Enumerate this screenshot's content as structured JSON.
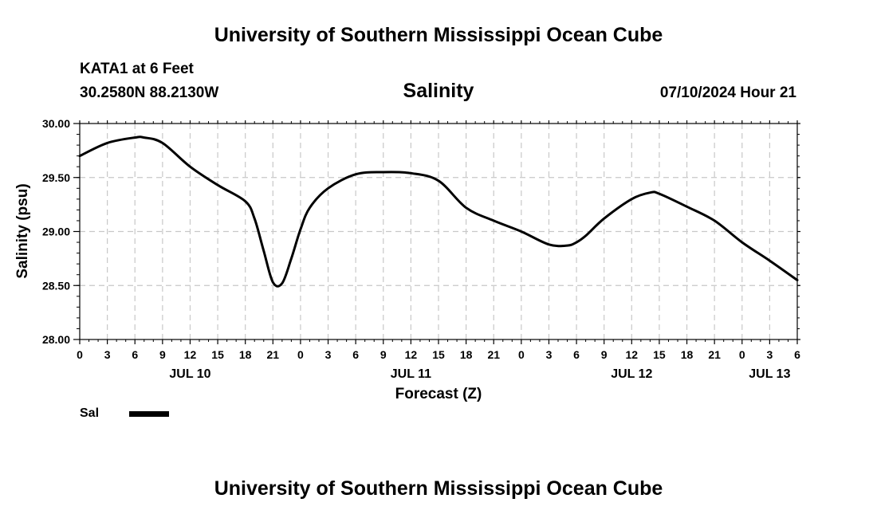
{
  "header": {
    "title": "University of Southern Mississippi Ocean Cube",
    "station": "KATA1 at 6 Feet",
    "coords": "30.2580N  88.2130W",
    "parameter": "Salinity",
    "datetime": "07/10/2024 Hour 21"
  },
  "footer": {
    "title": "University of Southern Mississippi Ocean Cube"
  },
  "legend": {
    "label": "Sal"
  },
  "colors": {
    "line": "#000000",
    "grid": "#c8c8c8"
  },
  "chart_data": {
    "type": "line",
    "title": "Salinity",
    "xlabel": "Forecast (Z)",
    "ylabel": "Salinity (psu)",
    "ylim": [
      28.0,
      30.0
    ],
    "xlim": [
      0,
      78
    ],
    "grid": true,
    "y_ticks": [
      "28.00",
      "28.50",
      "29.00",
      "29.50",
      "30.00"
    ],
    "x_tick_labels": [
      "0",
      "3",
      "6",
      "9",
      "12",
      "15",
      "18",
      "21",
      "0",
      "3",
      "6",
      "9",
      "12",
      "15",
      "18",
      "21",
      "0",
      "3",
      "6",
      "9",
      "12",
      "15",
      "18",
      "21",
      "0",
      "3",
      "6"
    ],
    "day_labels": [
      {
        "label": "JUL 10",
        "hour": 12
      },
      {
        "label": "JUL 11",
        "hour": 36
      },
      {
        "label": "JUL 12",
        "hour": 60
      },
      {
        "label": "JUL 13",
        "hour": 75
      }
    ],
    "series": [
      {
        "name": "Sal",
        "x": [
          0,
          3,
          6,
          7,
          9,
          12,
          15,
          18,
          19,
          20,
          21,
          22,
          23,
          24,
          25,
          27,
          30,
          33,
          36,
          39,
          42,
          45,
          48,
          51,
          53,
          54,
          55,
          57,
          60,
          62,
          63,
          66,
          69,
          72,
          75,
          78
        ],
        "values": [
          29.7,
          29.82,
          29.87,
          29.87,
          29.82,
          29.6,
          29.43,
          29.28,
          29.12,
          28.82,
          28.53,
          28.52,
          28.75,
          29.02,
          29.22,
          29.4,
          29.53,
          29.55,
          29.54,
          29.47,
          29.22,
          29.1,
          29.0,
          28.88,
          28.87,
          28.9,
          28.96,
          29.12,
          29.3,
          29.36,
          29.35,
          29.23,
          29.1,
          28.9,
          28.73,
          28.55
        ]
      }
    ]
  }
}
